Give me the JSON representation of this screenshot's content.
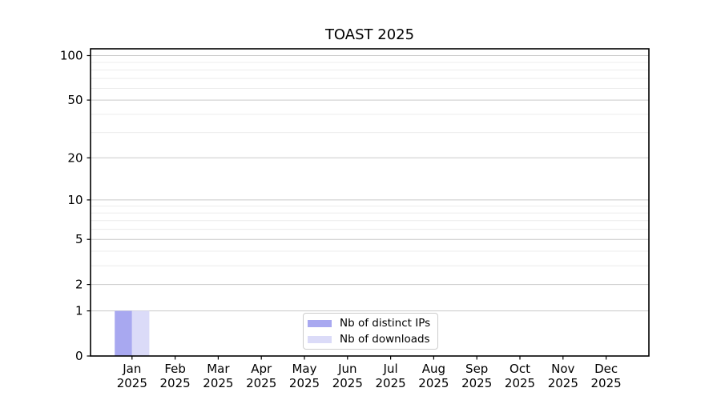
{
  "chart_data": {
    "type": "bar",
    "title": "TOAST 2025",
    "categories": [
      "Jan",
      "Feb",
      "Mar",
      "Apr",
      "May",
      "Jun",
      "Jul",
      "Aug",
      "Sep",
      "Oct",
      "Nov",
      "Dec"
    ],
    "year": "2025",
    "series": [
      {
        "name": "Nb of distinct IPs",
        "color": "#a8a8f0",
        "values": [
          1,
          0,
          0,
          0,
          0,
          0,
          0,
          0,
          0,
          0,
          0,
          0
        ]
      },
      {
        "name": "Nb of downloads",
        "color": "#dbdbf8",
        "values": [
          1,
          0,
          0,
          0,
          0,
          0,
          0,
          0,
          0,
          0,
          0,
          0
        ]
      }
    ],
    "y_ticks_major": [
      0,
      1,
      2,
      5,
      10,
      20,
      50,
      100
    ],
    "y_minor_gridlines": [
      3,
      4,
      6,
      7,
      8,
      9,
      30,
      40,
      60,
      70,
      80,
      90
    ],
    "scale": "log1p",
    "ylim": [
      0,
      110
    ],
    "xlabel": "",
    "ylabel": "",
    "grid": "horizontal",
    "legend_position": "bottom-center"
  },
  "colors": {
    "background": "#ffffff",
    "axis": "#000000",
    "grid_major": "#c9c9c9",
    "grid_minor": "#ececec",
    "tick_label": "#000000"
  }
}
